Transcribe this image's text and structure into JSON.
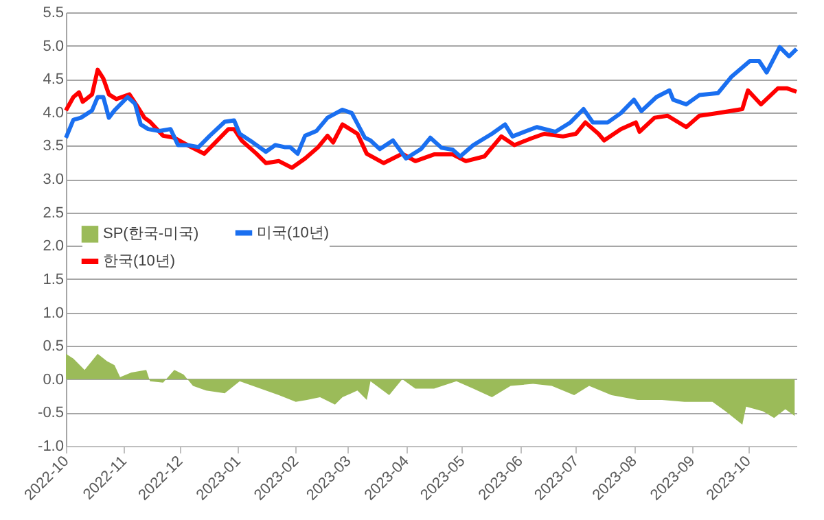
{
  "chart_data": {
    "type": "line",
    "xlim": [
      "2022-10-01",
      "2023-10-27"
    ],
    "xticks": [
      "2022-10",
      "2022-11",
      "2022-12",
      "2023-01",
      "2023-02",
      "2023-03",
      "2023-04",
      "2023-05",
      "2023-06",
      "2023-07",
      "2023-08",
      "2023-09",
      "2023-10"
    ],
    "ylim": [
      -1.0,
      5.5
    ],
    "yticks": [
      {
        "value": -1.0,
        "label": "-1.0"
      },
      -0.5,
      {
        "value": 0.0,
        "label": "0.0"
      },
      0.5,
      {
        "value": 1.0,
        "label": "1.0"
      },
      1.5,
      {
        "value": 2.0,
        "label": "2.0"
      },
      2.5,
      {
        "value": 3.0,
        "label": "3.0"
      },
      3.5,
      {
        "value": 4.0,
        "label": "4.0"
      },
      4.5,
      {
        "value": 5.0,
        "label": "5.0"
      },
      5.5
    ],
    "grid": "y",
    "legend": "left",
    "series": [
      {
        "name": "SP(한국-미국)",
        "type": "area",
        "color": "#9bbb59",
        "x": [
          "2022-10-01",
          "2022-10-05",
          "2022-10-11",
          "2022-10-18",
          "2022-10-23",
          "2022-10-27",
          "2022-10-30",
          "2022-11-05",
          "2022-11-13",
          "2022-11-15",
          "2022-11-22",
          "2022-11-28",
          "2022-12-03",
          "2022-12-08",
          "2022-12-15",
          "2022-12-25",
          "2023-01-02",
          "2023-01-09",
          "2023-01-16",
          "2023-01-23",
          "2023-02-01",
          "2023-02-07",
          "2023-02-14",
          "2023-02-22",
          "2023-02-26",
          "2023-03-06",
          "2023-03-11",
          "2023-03-13",
          "2023-03-23",
          "2023-03-30",
          "2023-04-06",
          "2023-04-16",
          "2023-04-28",
          "2023-05-07",
          "2023-05-17",
          "2023-05-27",
          "2023-06-08",
          "2023-06-18",
          "2023-06-30",
          "2023-07-08",
          "2023-07-20",
          "2023-08-03",
          "2023-08-16",
          "2023-08-28",
          "2023-09-12",
          "2023-09-19",
          "2023-09-28",
          "2023-09-30",
          "2023-10-09",
          "2023-10-15",
          "2023-10-21",
          "2023-10-26"
        ],
        "values": [
          0.38,
          0.31,
          0.14,
          0.38,
          0.27,
          0.21,
          0.03,
          0.1,
          0.14,
          -0.03,
          -0.05,
          0.14,
          0.07,
          -0.1,
          -0.17,
          -0.21,
          -0.03,
          -0.1,
          -0.17,
          -0.24,
          -0.34,
          -0.31,
          -0.27,
          -0.38,
          -0.27,
          -0.17,
          -0.31,
          -0.03,
          -0.24,
          0.0,
          -0.14,
          -0.14,
          -0.03,
          -0.14,
          -0.27,
          -0.1,
          -0.07,
          -0.1,
          -0.24,
          -0.1,
          -0.24,
          -0.31,
          -0.31,
          -0.34,
          -0.34,
          -0.48,
          -0.68,
          -0.41,
          -0.48,
          -0.58,
          -0.45,
          -0.55
        ]
      },
      {
        "name": "한국(10년)",
        "color": "#ff0000",
        "x": [
          "2022-10-01",
          "2022-10-05",
          "2022-10-08",
          "2022-10-10",
          "2022-10-15",
          "2022-10-18",
          "2022-10-21",
          "2022-10-24",
          "2022-10-28",
          "2022-11-04",
          "2022-11-08",
          "2022-11-12",
          "2022-11-15",
          "2022-11-22",
          "2022-11-28",
          "2022-12-05",
          "2022-12-14",
          "2022-12-20",
          "2022-12-27",
          "2022-12-30",
          "2023-01-03",
          "2023-01-11",
          "2023-01-16",
          "2023-01-23",
          "2023-01-30",
          "2023-02-06",
          "2023-02-13",
          "2023-02-18",
          "2023-02-21",
          "2023-02-26",
          "2023-03-06",
          "2023-03-11",
          "2023-03-20",
          "2023-03-30",
          "2023-04-06",
          "2023-04-16",
          "2023-04-26",
          "2023-05-03",
          "2023-05-13",
          "2023-05-22",
          "2023-05-29",
          "2023-06-07",
          "2023-06-14",
          "2023-06-24",
          "2023-07-01",
          "2023-07-06",
          "2023-07-13",
          "2023-07-16",
          "2023-07-25",
          "2023-08-02",
          "2023-08-04",
          "2023-08-12",
          "2023-08-19",
          "2023-08-29",
          "2023-09-05",
          "2023-09-15",
          "2023-09-28",
          "2023-10-01",
          "2023-10-08",
          "2023-10-17",
          "2023-10-22",
          "2023-10-27"
        ],
        "values": [
          4.03,
          4.23,
          4.3,
          4.16,
          4.27,
          4.64,
          4.51,
          4.27,
          4.2,
          4.27,
          4.1,
          3.92,
          3.86,
          3.65,
          3.62,
          3.51,
          3.38,
          3.55,
          3.75,
          3.75,
          3.58,
          3.38,
          3.24,
          3.27,
          3.17,
          3.31,
          3.48,
          3.65,
          3.55,
          3.82,
          3.68,
          3.38,
          3.24,
          3.38,
          3.27,
          3.37,
          3.37,
          3.27,
          3.34,
          3.64,
          3.51,
          3.61,
          3.68,
          3.64,
          3.68,
          3.85,
          3.68,
          3.58,
          3.75,
          3.85,
          3.71,
          3.92,
          3.95,
          3.78,
          3.95,
          3.99,
          4.05,
          4.33,
          4.12,
          4.36,
          4.36,
          4.31
        ]
      },
      {
        "name": "미국(10년)",
        "color": "#1a6ff0",
        "x": [
          "2022-10-01",
          "2022-10-05",
          "2022-10-09",
          "2022-10-15",
          "2022-10-18",
          "2022-10-21",
          "2022-10-24",
          "2022-10-27",
          "2022-11-03",
          "2022-11-07",
          "2022-11-10",
          "2022-11-14",
          "2022-11-20",
          "2022-11-26",
          "2022-11-30",
          "2022-12-05",
          "2022-12-11",
          "2022-12-17",
          "2022-12-25",
          "2022-12-30",
          "2023-01-02",
          "2023-01-09",
          "2023-01-16",
          "2023-01-21",
          "2023-01-26",
          "2023-01-29",
          "2023-02-02",
          "2023-02-06",
          "2023-02-12",
          "2023-02-18",
          "2023-02-26",
          "2023-03-03",
          "2023-03-10",
          "2023-03-13",
          "2023-03-18",
          "2023-03-25",
          "2023-04-01",
          "2023-04-09",
          "2023-04-14",
          "2023-04-20",
          "2023-04-26",
          "2023-04-30",
          "2023-05-07",
          "2023-05-17",
          "2023-05-24",
          "2023-05-28",
          "2023-06-10",
          "2023-06-20",
          "2023-06-28",
          "2023-07-05",
          "2023-07-10",
          "2023-07-18",
          "2023-07-25",
          "2023-08-01",
          "2023-08-05",
          "2023-08-13",
          "2023-08-20",
          "2023-08-22",
          "2023-08-29",
          "2023-09-05",
          "2023-09-15",
          "2023-09-22",
          "2023-10-02",
          "2023-10-07",
          "2023-10-11",
          "2023-10-18",
          "2023-10-23",
          "2023-10-27"
        ],
        "values": [
          3.62,
          3.89,
          3.92,
          4.03,
          4.23,
          4.23,
          3.92,
          4.03,
          4.23,
          4.13,
          3.82,
          3.75,
          3.72,
          3.75,
          3.51,
          3.51,
          3.48,
          3.65,
          3.86,
          3.88,
          3.68,
          3.55,
          3.41,
          3.51,
          3.48,
          3.48,
          3.38,
          3.65,
          3.72,
          3.92,
          4.04,
          3.99,
          3.62,
          3.58,
          3.45,
          3.58,
          3.31,
          3.45,
          3.62,
          3.47,
          3.44,
          3.34,
          3.51,
          3.68,
          3.82,
          3.64,
          3.78,
          3.71,
          3.85,
          4.05,
          3.85,
          3.85,
          3.99,
          4.19,
          4.02,
          4.23,
          4.33,
          4.19,
          4.12,
          4.26,
          4.29,
          4.53,
          4.77,
          4.77,
          4.6,
          4.98,
          4.84,
          4.95
        ]
      }
    ]
  }
}
